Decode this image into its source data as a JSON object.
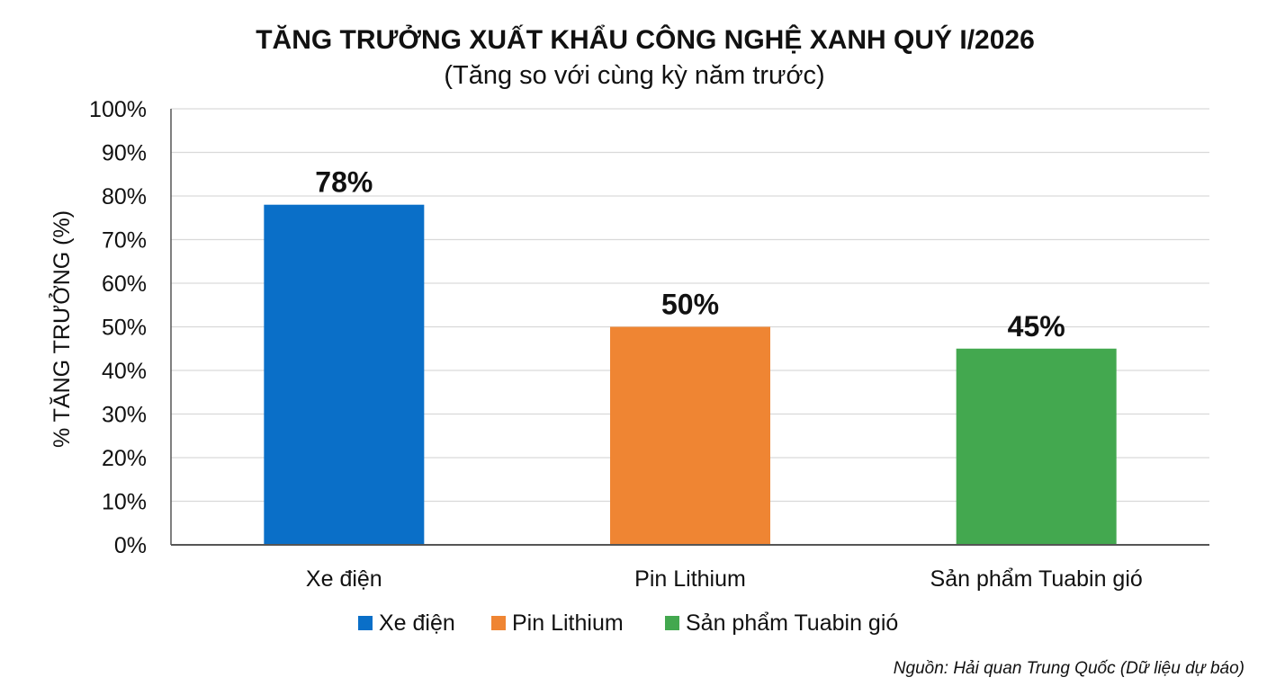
{
  "chart_data": {
    "type": "bar",
    "title": "TĂNG TRƯỞNG XUẤT KHẨU CÔNG NGHỆ XANH QUÝ I/2026",
    "subtitle": "(Tăng so với cùng kỳ năm trước)",
    "ylabel": "% TĂNG TRƯỞNG (%)",
    "xlabel": "",
    "categories": [
      "Xe điện",
      "Pin Lithium",
      "Sản phẩm Tuabin gió"
    ],
    "values": [
      78,
      50,
      45
    ],
    "data_labels": [
      "78%",
      "50%",
      "45%"
    ],
    "colors": [
      "#0a6fc8",
      "#ef8533",
      "#43a84f"
    ],
    "ylim": [
      0,
      100
    ],
    "yticks": [
      0,
      10,
      20,
      30,
      40,
      50,
      60,
      70,
      80,
      90,
      100
    ],
    "ytick_labels": [
      "0%",
      "10%",
      "20%",
      "30%",
      "40%",
      "50%",
      "60%",
      "70%",
      "80%",
      "90%",
      "100%"
    ],
    "grid": true,
    "legend": {
      "placement": "bottom",
      "entries": [
        "Xe điện",
        "Pin Lithium",
        "Sản phẩm Tuabin gió"
      ]
    },
    "source": "Nguồn: Hải quan Trung Quốc (Dữ liệu dự báo)"
  }
}
